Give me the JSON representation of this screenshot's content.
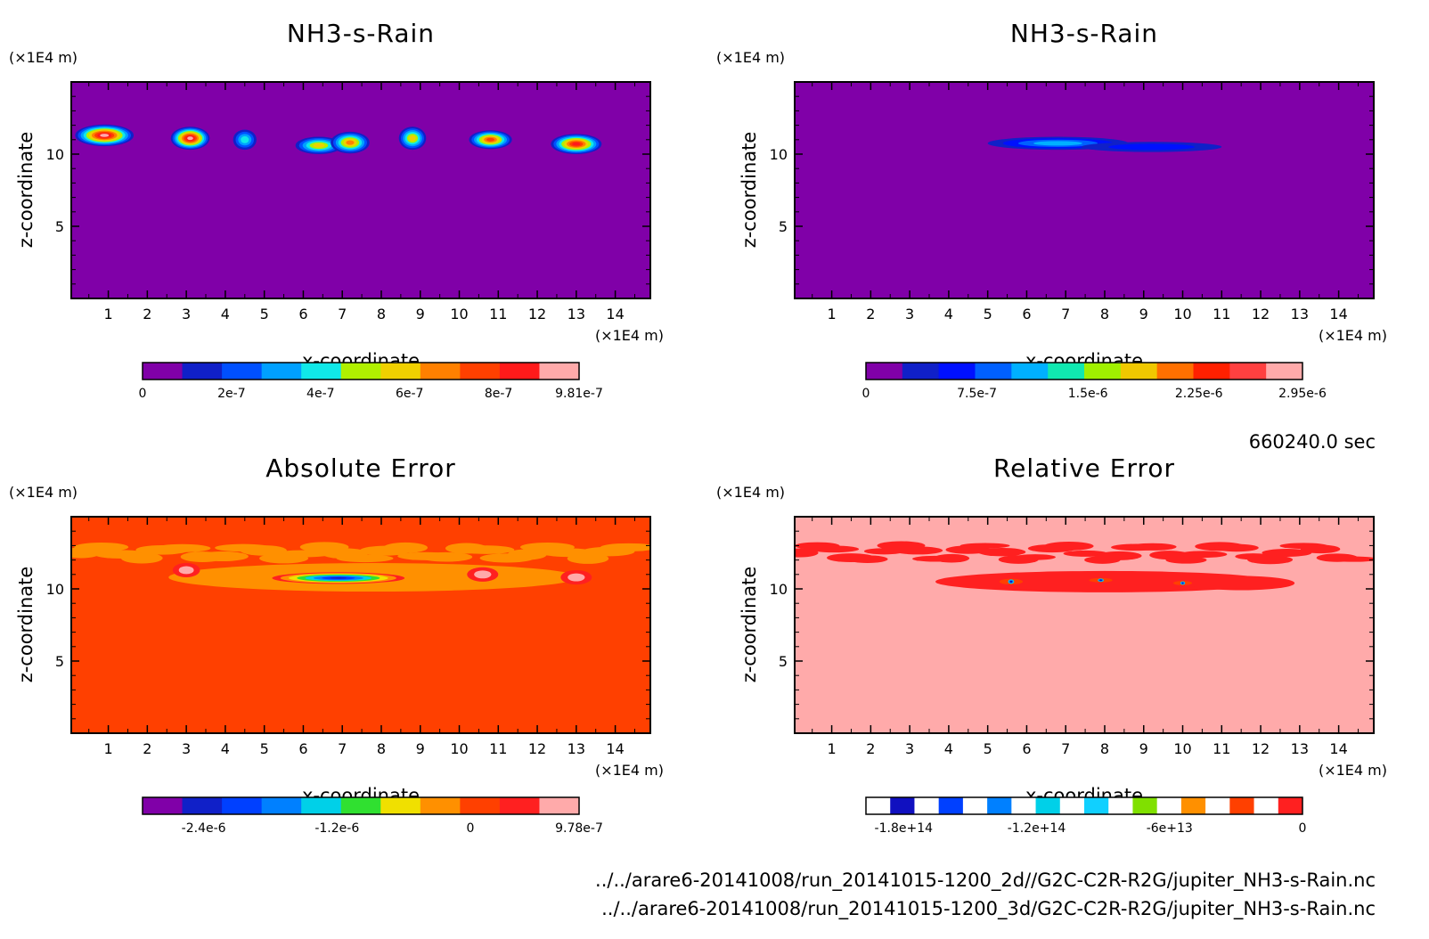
{
  "chart_data": [
    {
      "type": "heatmap",
      "title": "NH3-s-Rain",
      "xlabel": "x-coordinate",
      "ylabel": "z-coordinate",
      "x_unit": "(×1E4 m)",
      "y_unit": "(×1E4 m)",
      "xlim": [
        0.05,
        14.9
      ],
      "ylim": [
        0,
        15
      ],
      "xticks": [
        "1",
        "2",
        "3",
        "4",
        "5",
        "6",
        "7",
        "8",
        "9",
        "10",
        "11",
        "12",
        "13",
        "14"
      ],
      "yticks": [
        "5",
        "10"
      ],
      "background_color": "#8000a8",
      "colorbar": {
        "colors": [
          "#8000a8",
          "#1020c8",
          "#0050ff",
          "#00a0ff",
          "#10e8e8",
          "#b0f000",
          "#f0d000",
          "#ff8000",
          "#ff4000",
          "#ff1a1a",
          "#ffaaaa"
        ],
        "tick_labels": [
          "0",
          "2e-7",
          "4e-7",
          "6e-7",
          "8e-7",
          "9.81e-7"
        ],
        "tick_values": [
          0,
          2e-07,
          4e-07,
          6e-07,
          8e-07,
          9.81e-07
        ],
        "vmin": 0,
        "vmax": 9.81e-07
      },
      "features": [
        {
          "x": 0.9,
          "z": 11.3,
          "wx": 0.75,
          "wz": 0.75,
          "peak": 1.0
        },
        {
          "x": 3.1,
          "z": 11.1,
          "wx": 0.5,
          "wz": 0.8,
          "peak": 1.0
        },
        {
          "x": 4.5,
          "z": 11.0,
          "wx": 0.3,
          "wz": 0.7,
          "peak": 0.35
        },
        {
          "x": 6.4,
          "z": 10.6,
          "wx": 0.6,
          "wz": 0.6,
          "peak": 0.6
        },
        {
          "x": 7.2,
          "z": 10.8,
          "wx": 0.5,
          "wz": 0.75,
          "peak": 0.7
        },
        {
          "x": 8.8,
          "z": 11.1,
          "wx": 0.35,
          "wz": 0.8,
          "peak": 0.55
        },
        {
          "x": 10.8,
          "z": 11.0,
          "wx": 0.55,
          "wz": 0.65,
          "peak": 0.75
        },
        {
          "x": 13.0,
          "z": 10.7,
          "wx": 0.65,
          "wz": 0.7,
          "peak": 0.9
        }
      ]
    },
    {
      "type": "heatmap",
      "title": "NH3-s-Rain",
      "xlabel": "x-coordinate",
      "ylabel": "z-coordinate",
      "x_unit": "(×1E4 m)",
      "y_unit": "(×1E4 m)",
      "xlim": [
        0.05,
        14.9
      ],
      "ylim": [
        0,
        15
      ],
      "xticks": [
        "1",
        "2",
        "3",
        "4",
        "5",
        "6",
        "7",
        "8",
        "9",
        "10",
        "11",
        "12",
        "13",
        "14"
      ],
      "yticks": [
        "5",
        "10"
      ],
      "background_color": "#8000a8",
      "colorbar": {
        "colors": [
          "#8000a8",
          "#1020c8",
          "#0010ff",
          "#0060ff",
          "#00b0ff",
          "#10e8b0",
          "#a0f000",
          "#f0c800",
          "#ff7000",
          "#ff2000",
          "#ff4040",
          "#ffaaaa"
        ],
        "tick_labels": [
          "0",
          "7.5e-7",
          "1.5e-6",
          "2.25e-6",
          "2.95e-6"
        ],
        "tick_values": [
          0,
          7.5e-07,
          1.5e-06,
          2.25e-06,
          2.95e-06
        ],
        "vmin": 0,
        "vmax": 2.95e-06
      },
      "features": [
        {
          "x": 6.8,
          "z": 10.75,
          "wx": 1.8,
          "wz": 0.45,
          "peak": 0.4
        },
        {
          "x": 9.2,
          "z": 10.5,
          "wx": 1.8,
          "wz": 0.35,
          "peak": 0.15
        }
      ]
    },
    {
      "type": "heatmap",
      "title": "Absolute Error",
      "xlabel": "x-coordinate",
      "ylabel": "z-coordinate",
      "x_unit": "(×1E4 m)",
      "y_unit": "(×1E4 m)",
      "xlim": [
        0.05,
        14.9
      ],
      "ylim": [
        0,
        15
      ],
      "xticks": [
        "1",
        "2",
        "3",
        "4",
        "5",
        "6",
        "7",
        "8",
        "9",
        "10",
        "11",
        "12",
        "13",
        "14"
      ],
      "yticks": [
        "5",
        "10"
      ],
      "background_color": "#ff4000",
      "colorbar": {
        "colors": [
          "#8000a8",
          "#1020c8",
          "#0040ff",
          "#0080ff",
          "#00d0e8",
          "#30e030",
          "#f0e000",
          "#ff9000",
          "#ff4000",
          "#ff2020",
          "#ffaaaa"
        ],
        "tick_labels": [
          "-2.4e-6",
          "-1.2e-6",
          "0",
          "9.78e-7"
        ],
        "tick_values": [
          -2.4e-06,
          -1.2e-06,
          0,
          9.78e-07
        ],
        "vmin": -2.95e-06,
        "vmax": 9.78e-07
      },
      "features": [
        {
          "x": 3.0,
          "z": 11.3,
          "wx": 0.35,
          "wz": 0.5,
          "peak": 0.3
        },
        {
          "x": 6.9,
          "z": 10.75,
          "wx": 1.7,
          "wz": 0.4,
          "peak": -1.0
        },
        {
          "x": 10.6,
          "z": 11.0,
          "wx": 0.4,
          "wz": 0.5,
          "peak": 0.3
        },
        {
          "x": 13.0,
          "z": 10.8,
          "wx": 0.4,
          "wz": 0.5,
          "peak": 0.25
        }
      ]
    },
    {
      "type": "heatmap",
      "title": "Relative Error",
      "xlabel": "x-coordinate",
      "ylabel": "z-coordinate",
      "x_unit": "(×1E4 m)",
      "y_unit": "(×1E4 m)",
      "xlim": [
        0.05,
        14.9
      ],
      "ylim": [
        0,
        15
      ],
      "xticks": [
        "1",
        "2",
        "3",
        "4",
        "5",
        "6",
        "7",
        "8",
        "9",
        "10",
        "11",
        "12",
        "13",
        "14"
      ],
      "yticks": [
        "5",
        "10"
      ],
      "background_color": "#ffaaaa",
      "colorbar": {
        "colors": [
          "#ffffff",
          "#1010c0",
          "#ffffff",
          "#0040ff",
          "#ffffff",
          "#0080ff",
          "#ffffff",
          "#00d0e8",
          "#ffffff",
          "#10d0ff",
          "#ffffff",
          "#80e000",
          "#ffffff",
          "#ff9000",
          "#ffffff",
          "#ff4000",
          "#ffffff",
          "#ff2020"
        ],
        "tick_labels": [
          "-1.8e+14",
          "-1.2e+14",
          "-6e+13",
          "0"
        ],
        "tick_values": [
          -180000000000000.0,
          -120000000000000.0,
          -60000000000000.0,
          0
        ],
        "vmin": -197000000000000.0,
        "vmax": 0
      },
      "features": [
        {
          "x": 5.6,
          "z": 10.5,
          "wx": 0.1,
          "wz": 0.2,
          "peak": 1.0
        },
        {
          "x": 7.9,
          "z": 10.6,
          "wx": 0.1,
          "wz": 0.15,
          "peak": 0.6
        },
        {
          "x": 10.0,
          "z": 10.4,
          "wx": 0.08,
          "wz": 0.15,
          "peak": 0.8
        }
      ]
    }
  ],
  "timestamp": "660240.0 sec",
  "footer_lines": [
    "../../arare6-20141008/run_20141015-1200_2d//G2C-C2R-R2G/jupiter_NH3-s-Rain.nc",
    "../../arare6-20141008/run_20141015-1200_3d/G2C-C2R-R2G/jupiter_NH3-s-Rain.nc"
  ],
  "colors": {
    "frame": "#000000",
    "error_band_light": "#ff9000",
    "error_band_pink": "#ff2020",
    "relerr_band": "#ff2020"
  }
}
